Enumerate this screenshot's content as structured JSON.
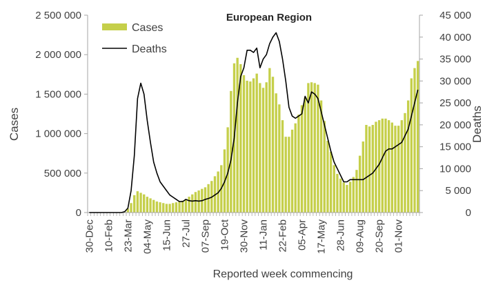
{
  "chart_data": {
    "type": "bar+line",
    "title": "European Region",
    "xlabel": "Reported week commencing",
    "ylabel_left": "Cases",
    "ylabel_right": "Deaths",
    "ylim_left": [
      0,
      2500000
    ],
    "ylim_right": [
      0,
      45000
    ],
    "yticks_left": [
      "0",
      "500 000",
      "1 000 000",
      "1 500 000",
      "2 000 000",
      "2 500 000"
    ],
    "yticks_right": [
      "0",
      "5 000",
      "10 000",
      "15 000",
      "20 000",
      "25 000",
      "30 000",
      "35 000",
      "40 000",
      "45 000"
    ],
    "x_tick_labels": [
      "30-Dec",
      "10-Feb",
      "23-Mar",
      "04-May",
      "15-Jun",
      "27-Jul",
      "07-Sep",
      "19-Oct",
      "30-Nov",
      "11-Jan",
      "22-Feb",
      "05-Apr",
      "17-May",
      "28-Jun",
      "09-Aug",
      "20-Sep",
      "01-Nov"
    ],
    "x_tick_label_step": 6,
    "legend": {
      "position": "top-left",
      "cases_label": "Cases",
      "deaths_label": "Deaths"
    },
    "grid": false,
    "colors": {
      "cases": "#c5cf4a",
      "deaths": "#000000",
      "axis": "#a6a6a6",
      "text": "#404040"
    },
    "series": [
      {
        "name": "Cases",
        "kind": "bar",
        "axis": "left",
        "values": [
          0,
          0,
          0,
          0,
          0,
          0,
          0,
          0,
          0,
          0,
          0,
          10000,
          50000,
          120000,
          220000,
          270000,
          250000,
          230000,
          200000,
          180000,
          160000,
          140000,
          130000,
          120000,
          110000,
          110000,
          120000,
          130000,
          140000,
          150000,
          170000,
          200000,
          230000,
          260000,
          280000,
          300000,
          320000,
          360000,
          400000,
          460000,
          520000,
          600000,
          800000,
          1080000,
          1540000,
          1890000,
          1960000,
          1880000,
          1740000,
          1670000,
          1660000,
          1700000,
          1760000,
          1640000,
          1580000,
          1650000,
          1830000,
          1720000,
          1510000,
          1370000,
          1170000,
          960000,
          960000,
          1050000,
          1130000,
          1240000,
          1360000,
          1460000,
          1640000,
          1650000,
          1640000,
          1620000,
          1420000,
          1160000,
          910000,
          770000,
          600000,
          490000,
          430000,
          380000,
          350000,
          390000,
          450000,
          540000,
          720000,
          900000,
          1110000,
          1090000,
          1110000,
          1150000,
          1170000,
          1190000,
          1190000,
          1170000,
          1140000,
          1100000,
          1100000,
          1170000,
          1260000,
          1420000,
          1700000,
          1830000,
          1920000
        ]
      },
      {
        "name": "Deaths",
        "kind": "line",
        "axis": "right",
        "values": [
          0,
          0,
          0,
          0,
          0,
          0,
          0,
          0,
          0,
          0,
          0,
          200,
          1000,
          5000,
          13000,
          26000,
          29500,
          27000,
          21000,
          16000,
          11500,
          9000,
          7000,
          6000,
          5000,
          4000,
          3500,
          3000,
          2500,
          2500,
          3000,
          2700,
          2600,
          2700,
          2600,
          2700,
          3000,
          3200,
          3500,
          4000,
          4500,
          5500,
          7000,
          9000,
          12000,
          17000,
          25000,
          31000,
          33000,
          37000,
          37000,
          36500,
          37500,
          33000,
          35000,
          36000,
          38500,
          40000,
          41000,
          39000,
          35000,
          30000,
          24000,
          22000,
          21500,
          22000,
          22500,
          26500,
          25000,
          27500,
          27000,
          26000,
          23000,
          20000,
          17000,
          14000,
          11500,
          10000,
          8500,
          7000,
          7000,
          7500,
          7500,
          7500,
          7500,
          7500,
          8000,
          8500,
          9000,
          10000,
          11000,
          12500,
          14000,
          14500,
          14500,
          15000,
          15500,
          16000,
          17500,
          19000,
          22000,
          25000,
          28000
        ]
      }
    ]
  }
}
